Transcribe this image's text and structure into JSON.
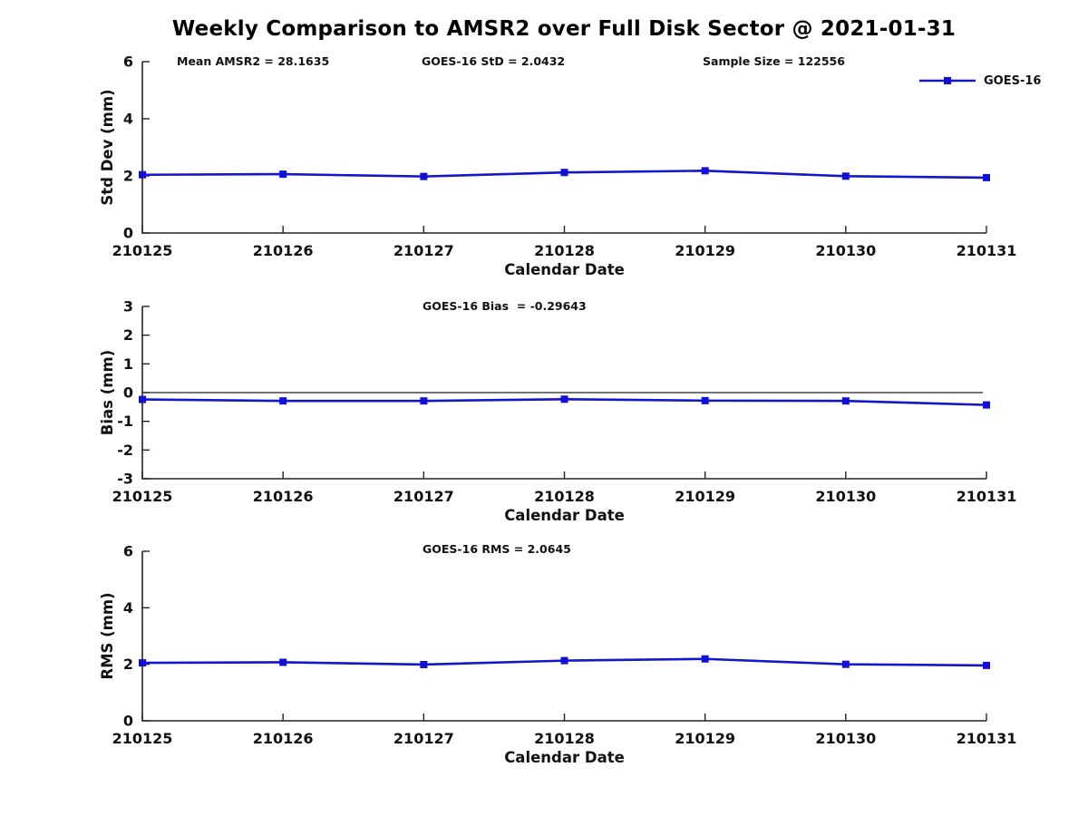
{
  "title": "Weekly Comparison to AMSR2 over Full Disk Sector @ 2021-01-31",
  "annotations": {
    "mean_amsr2": "Mean AMSR2 = 28.1635",
    "goes16_std": "GOES-16 StD = 2.0432",
    "sample_size": "Sample Size = 122556",
    "goes16_bias": "GOES-16 Bias  = -0.29643",
    "goes16_rms": "GOES-16 RMS = 2.0645"
  },
  "legend": {
    "label": "GOES-16",
    "line_color": "#1515cc",
    "marker_color": "#0f0fe0"
  },
  "chart_data": [
    {
      "type": "line",
      "name": "stddev",
      "categories": [
        "210125",
        "210126",
        "210127",
        "210128",
        "210129",
        "210130",
        "210131"
      ],
      "series": [
        {
          "name": "GOES-16",
          "values": [
            2.04,
            2.06,
            1.98,
            2.12,
            2.18,
            1.99,
            1.94
          ]
        }
      ],
      "xlabel": "Calendar Date",
      "ylabel": "Std Dev (mm)",
      "ylim": [
        0,
        6
      ],
      "yticks": [
        0,
        2,
        4,
        6
      ],
      "grid": false,
      "zero_line": false,
      "marker": "square",
      "line_color": "#1515cc",
      "marker_color": "#0f0fe0",
      "legend_position": "top-right",
      "weekly_stat_value": "2.0432"
    },
    {
      "type": "line",
      "name": "bias",
      "categories": [
        "210125",
        "210126",
        "210127",
        "210128",
        "210129",
        "210130",
        "210131"
      ],
      "series": [
        {
          "name": "GOES-16",
          "values": [
            -0.24,
            -0.29,
            -0.29,
            -0.23,
            -0.28,
            -0.29,
            -0.43
          ]
        }
      ],
      "xlabel": "Calendar Date",
      "ylabel": "Bias (mm)",
      "ylim": [
        -3,
        3
      ],
      "yticks": [
        -3,
        -2,
        -1,
        0,
        1,
        2,
        3
      ],
      "grid": false,
      "zero_line": true,
      "marker": "square",
      "line_color": "#1515cc",
      "marker_color": "#0f0fe0",
      "legend_position": "none",
      "weekly_stat_value": "-0.29643"
    },
    {
      "type": "line",
      "name": "rms",
      "categories": [
        "210125",
        "210126",
        "210127",
        "210128",
        "210129",
        "210130",
        "210131"
      ],
      "series": [
        {
          "name": "GOES-16",
          "values": [
            2.05,
            2.07,
            1.99,
            2.13,
            2.19,
            2.0,
            1.96
          ]
        }
      ],
      "xlabel": "Calendar Date",
      "ylabel": "RMS (mm)",
      "ylim": [
        0,
        6
      ],
      "yticks": [
        0,
        2,
        4,
        6
      ],
      "grid": false,
      "zero_line": false,
      "marker": "square",
      "line_color": "#1515cc",
      "marker_color": "#0f0fe0",
      "legend_position": "none",
      "weekly_stat_value": "2.0645"
    }
  ]
}
